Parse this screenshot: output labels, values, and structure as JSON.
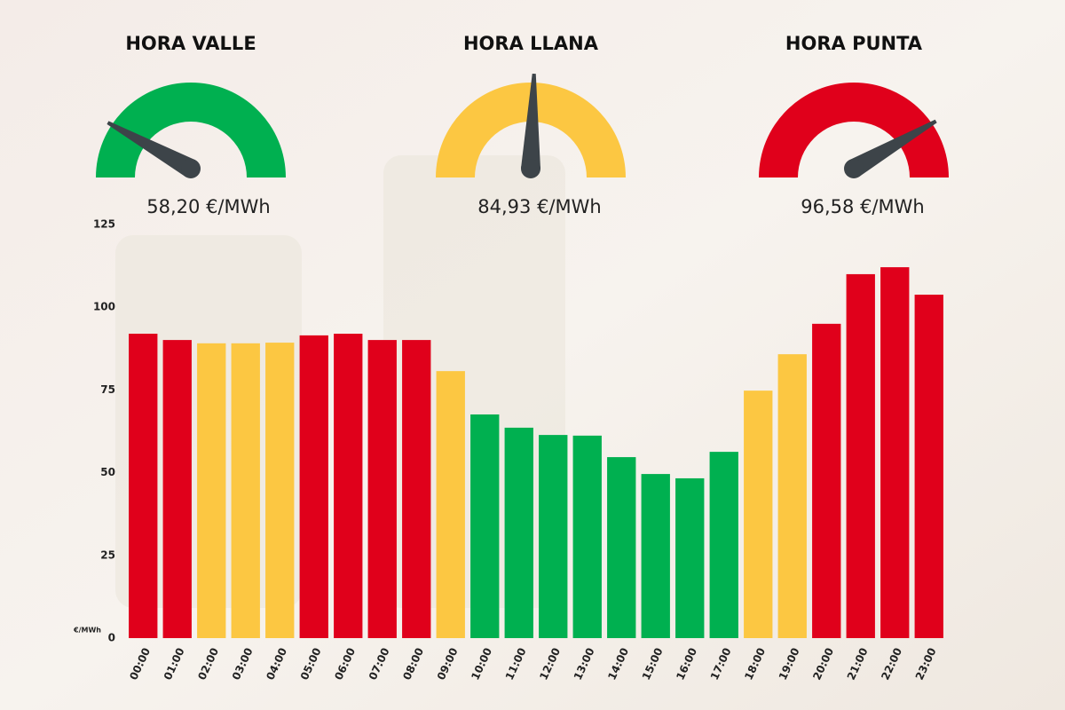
{
  "gauges": [
    {
      "title": "HORA VALLE",
      "label": "58,20 €/MWh",
      "color": "#00b050"
    },
    {
      "title": "HORA LLANA",
      "label": "84,93 €/MWh",
      "color": "#fcc742"
    },
    {
      "title": "HORA PUNTA",
      "label": "96,58 €/MWh",
      "color": "#e0001b"
    }
  ],
  "chart_data": {
    "type": "bar",
    "y_unit": "€/MWh",
    "categories": [
      "00:00",
      "01:00",
      "02:00",
      "03:00",
      "04:00",
      "05:00",
      "06:00",
      "07:00",
      "08:00",
      "09:00",
      "10:00",
      "11:00",
      "12:00",
      "13:00",
      "14:00",
      "15:00",
      "16:00",
      "17:00",
      "18:00",
      "19:00",
      "20:00",
      "21:00",
      "22:00",
      "23:00"
    ],
    "values": [
      92.0,
      90.1,
      89.1,
      89.1,
      89.3,
      91.5,
      92.0,
      90.1,
      90.1,
      80.7,
      67.6,
      63.6,
      61.4,
      61.2,
      54.7,
      49.6,
      48.3,
      56.3,
      74.8,
      85.8,
      95.0,
      110.0,
      112.1,
      103.8
    ],
    "colors": [
      "#e0001b",
      "#e0001b",
      "#fcc742",
      "#fcc742",
      "#fcc742",
      "#e0001b",
      "#e0001b",
      "#e0001b",
      "#e0001b",
      "#fcc742",
      "#00b050",
      "#00b050",
      "#00b050",
      "#00b050",
      "#00b050",
      "#00b050",
      "#00b050",
      "#00b050",
      "#fcc742",
      "#fcc742",
      "#e0001b",
      "#e0001b",
      "#e0001b",
      "#e0001b"
    ],
    "ylim": [
      0,
      125
    ],
    "yticks": [
      0,
      25,
      50,
      75,
      100,
      125
    ],
    "grid": false
  }
}
